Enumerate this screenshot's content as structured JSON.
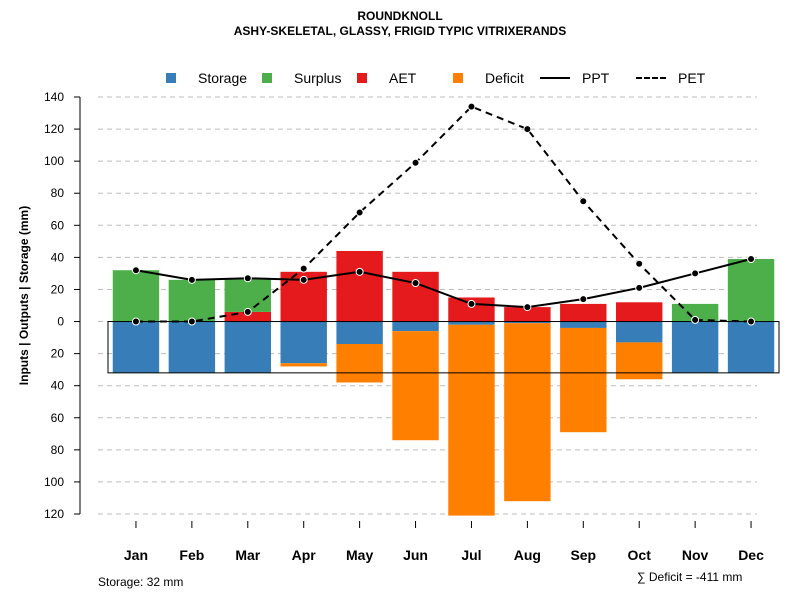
{
  "chart_data": {
    "type": "bar",
    "title": "ROUNDKNOLL",
    "subtitle": "ASHY-SKELETAL, GLASSY, FRIGID TYPIC VITRIXERANDS",
    "ylabel": "Inputs | Outputs | Storage    (mm)",
    "xlabel": "",
    "categories": [
      "Jan",
      "Feb",
      "Mar",
      "Apr",
      "May",
      "Jun",
      "Jul",
      "Aug",
      "Sep",
      "Oct",
      "Nov",
      "Dec"
    ],
    "ylim": [
      -120,
      140
    ],
    "yticks": [
      140,
      120,
      100,
      80,
      60,
      40,
      20,
      0,
      -20,
      -40,
      -60,
      -80,
      -100,
      -120
    ],
    "ytick_labels": [
      "140",
      "120",
      "100",
      "80",
      "60",
      "40",
      "20",
      "0",
      "20",
      "40",
      "60",
      "80",
      "100",
      "120"
    ],
    "grid": true,
    "legend_position": "top",
    "storage_capacity": 32,
    "series": [
      {
        "name": "Storage",
        "color": "#377eb8",
        "role": "below",
        "values": [
          32,
          32,
          32,
          26,
          14,
          6,
          2,
          1,
          4,
          13,
          32,
          32
        ]
      },
      {
        "name": "Surplus",
        "color": "#4daf4a",
        "role": "above",
        "values": [
          32,
          26,
          21,
          0,
          0,
          0,
          0,
          0,
          0,
          0,
          11,
          39
        ]
      },
      {
        "name": "AET",
        "color": "#e41a1c",
        "role": "above",
        "values": [
          0,
          0,
          6,
          31,
          44,
          31,
          15,
          9,
          11,
          12,
          0,
          0
        ]
      },
      {
        "name": "Deficit",
        "color": "#ff7f00",
        "role": "below",
        "values": [
          0,
          0,
          0,
          2,
          24,
          68,
          119,
          111,
          65,
          23,
          0,
          0
        ]
      },
      {
        "name": "PPT",
        "style": "solid",
        "role": "line",
        "values": [
          32,
          26,
          27,
          26,
          31,
          24,
          11,
          9,
          14,
          21,
          30,
          39
        ]
      },
      {
        "name": "PET",
        "style": "dashed",
        "role": "line",
        "values": [
          0,
          0,
          6,
          33,
          68,
          99,
          134,
          120,
          75,
          36,
          1,
          0
        ]
      }
    ],
    "footer_storage": "Storage: 32 mm",
    "footer_deficit": "∑ Deficit = -411 mm"
  },
  "legend": {
    "storage": "Storage",
    "surplus": "Surplus",
    "aet": "AET",
    "deficit": "Deficit",
    "ppt": "PPT",
    "pet": "PET"
  },
  "colors": {
    "storage": "#377eb8",
    "surplus": "#4daf4a",
    "aet": "#e41a1c",
    "deficit": "#ff7f00"
  }
}
